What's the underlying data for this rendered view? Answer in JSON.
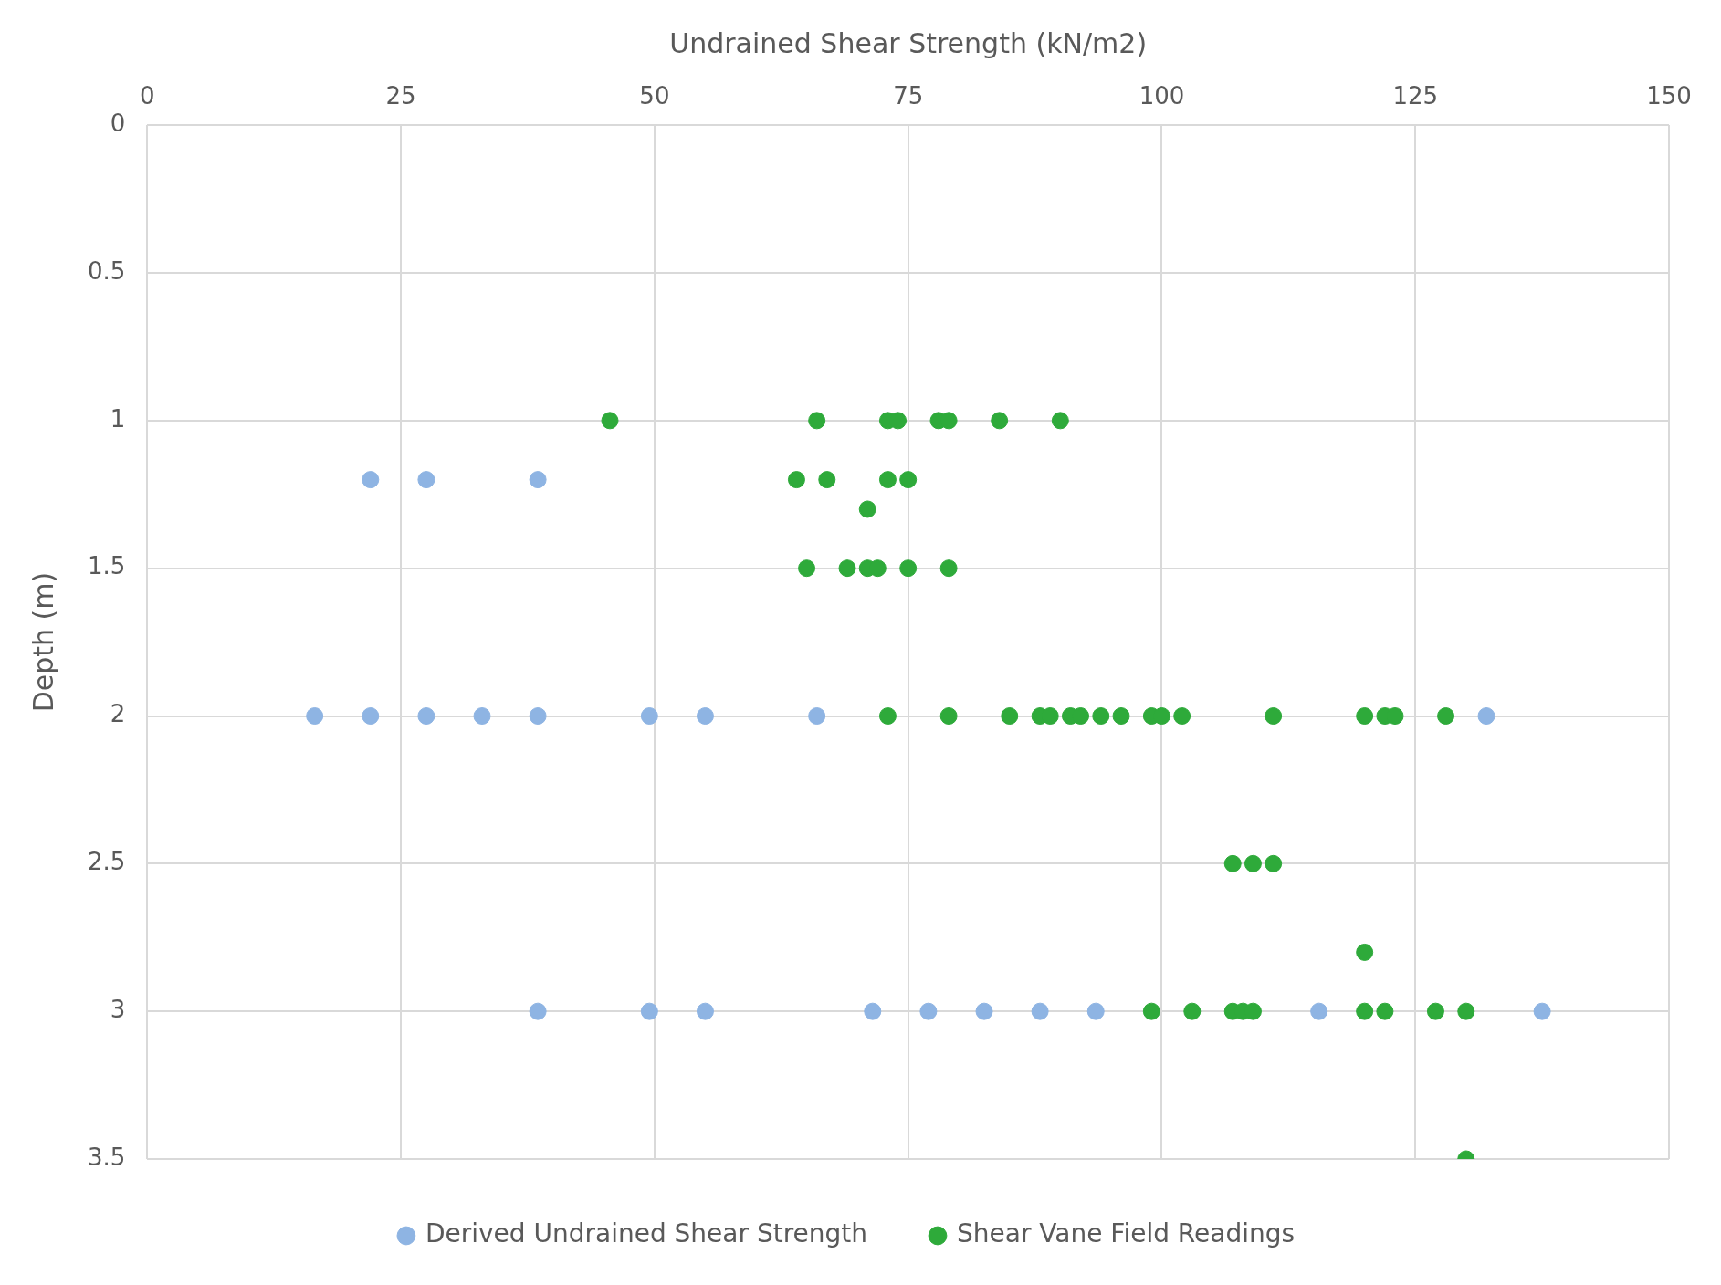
{
  "chart_data": {
    "type": "scatter",
    "xlabel": "Undrained Shear Strength (kN/m2)",
    "ylabel": "Depth (m)",
    "xlim": [
      0,
      150
    ],
    "xticks": [
      0,
      25,
      50,
      75,
      100,
      125,
      150
    ],
    "ylim": [
      3.5,
      0
    ],
    "yticks": [
      0,
      0.5,
      1,
      1.5,
      2,
      2.5,
      3,
      3.5
    ],
    "grid": true,
    "legend": "bottom",
    "marker": "circle",
    "series": [
      {
        "name": "Derived Undrained Shear Strength",
        "color": "#8eb4e3",
        "x": [
          22,
          27.5,
          38.5,
          16.5,
          22,
          27.5,
          33,
          38.5,
          49.5,
          55,
          66,
          132,
          38.5,
          49.5,
          55,
          71.5,
          77,
          82.5,
          88,
          93.5,
          115.5,
          137.5
        ],
        "values": [
          1.2,
          1.2,
          1.2,
          2,
          2,
          2,
          2,
          2,
          2,
          2,
          2,
          2,
          3,
          3,
          3,
          3,
          3,
          3,
          3,
          3,
          3,
          3
        ]
      },
      {
        "name": "Shear Vane Field Readings",
        "color": "#2eaa3a",
        "x": [
          45.6,
          66,
          73,
          74,
          78,
          79,
          84,
          90,
          64,
          67,
          73,
          75,
          71,
          65,
          69,
          71,
          72,
          75,
          79,
          73,
          79,
          85,
          88,
          89,
          91,
          92,
          94,
          96,
          99,
          100,
          102,
          111,
          120,
          122,
          123,
          128,
          107,
          109,
          111,
          120,
          99,
          103,
          107,
          108,
          109,
          120,
          122,
          127,
          130,
          130
        ],
        "values": [
          1,
          1,
          1,
          1,
          1,
          1,
          1,
          1,
          1.2,
          1.2,
          1.2,
          1.2,
          1.3,
          1.5,
          1.5,
          1.5,
          1.5,
          1.5,
          1.5,
          2,
          2,
          2,
          2,
          2,
          2,
          2,
          2,
          2,
          2,
          2,
          2,
          2,
          2,
          2,
          2,
          2,
          2.5,
          2.5,
          2.5,
          2.8,
          3,
          3,
          3,
          3,
          3,
          3,
          3,
          3,
          3,
          3.5
        ]
      }
    ]
  }
}
